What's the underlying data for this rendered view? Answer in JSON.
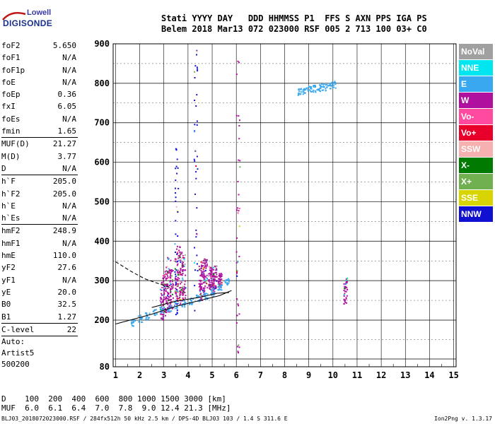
{
  "logo": {
    "line1": "Lowell",
    "line2": "DIGISONDE"
  },
  "header": {
    "line1": "Stati YYYY DAY   DDD HHMMSS P1  FFS S AXN PPS IGA PS",
    "line2": "Belem 2018 Mar13 072 023000 RSF 005 2 713 100 03+ C0"
  },
  "params": {
    "group1": [
      {
        "k": "foF2",
        "v": "5.650"
      },
      {
        "k": "foF1",
        "v": "N/A"
      },
      {
        "k": "foF1p",
        "v": "N/A"
      },
      {
        "k": "foE",
        "v": "N/A"
      },
      {
        "k": "foEp",
        "v": "0.36"
      },
      {
        "k": "fxI",
        "v": "6.05"
      },
      {
        "k": "foEs",
        "v": "N/A"
      },
      {
        "k": "fmin",
        "v": "1.65"
      }
    ],
    "group2": [
      {
        "k": "MUF(D)",
        "v": "21.27"
      },
      {
        "k": "M(D)",
        "v": "3.77"
      },
      {
        "k": "D",
        "v": "N/A"
      }
    ],
    "group3": [
      {
        "k": "h`F",
        "v": "205.0"
      },
      {
        "k": "h`F2",
        "v": "205.0"
      },
      {
        "k": "h`E",
        "v": "N/A"
      },
      {
        "k": "h`Es",
        "v": "N/A"
      }
    ],
    "group4": [
      {
        "k": "hmF2",
        "v": "248.9"
      },
      {
        "k": "hmF1",
        "v": "N/A"
      },
      {
        "k": "hmE",
        "v": "110.0"
      },
      {
        "k": "yF2",
        "v": "27.6"
      },
      {
        "k": "yF1",
        "v": "N/A"
      },
      {
        "k": "yE",
        "v": "20.0"
      },
      {
        "k": "B0",
        "v": "32.5"
      },
      {
        "k": "B1",
        "v": "1.27"
      }
    ],
    "group5": [
      {
        "k": "C-level",
        "v": "22"
      }
    ],
    "auto": [
      "Auto:",
      "Artist5",
      "500200"
    ]
  },
  "legend": [
    {
      "label": "NoVal",
      "color": "#a0a0a0"
    },
    {
      "label": "NNE",
      "color": "#00e5f0"
    },
    {
      "label": "E",
      "color": "#3aa8f0"
    },
    {
      "label": "W",
      "color": "#b0109e"
    },
    {
      "label": "Vo-",
      "color": "#ff4aa0"
    },
    {
      "label": "Vo+",
      "color": "#e8002a"
    },
    {
      "label": "SSW",
      "color": "#f6b0b0"
    },
    {
      "label": "X-",
      "color": "#007a00"
    },
    {
      "label": "X+",
      "color": "#70b050"
    },
    {
      "label": "SSE",
      "color": "#d8d400"
    },
    {
      "label": "NNW",
      "color": "#1010d0"
    }
  ],
  "chart_data": {
    "type": "scatter",
    "x_ticks": [
      1,
      2,
      3,
      4,
      5,
      6,
      7,
      8,
      9,
      10,
      11,
      12,
      13,
      14,
      15
    ],
    "y_ticks": [
      80,
      200,
      300,
      400,
      500,
      600,
      700,
      800,
      900
    ],
    "xlim": [
      0.9,
      15.1
    ],
    "ylim": [
      80,
      900
    ],
    "y_scale": "height (non-linear, expanded below 300 km)",
    "grid": true,
    "traces": [
      {
        "name": "extraordinary_w",
        "color": "#b0109e",
        "x": [
          2.9,
          3.0,
          3.1,
          3.2,
          3.3,
          3.5,
          3.6,
          3.7,
          3.8,
          4.5,
          4.6,
          4.7,
          4.9,
          5.0,
          5.1,
          5.3
        ],
        "ymin": [
          200,
          210,
          215,
          220,
          225,
          240,
          240,
          250,
          250,
          250,
          260,
          265,
          270,
          270,
          280,
          285
        ],
        "ymax": [
          300,
          320,
          340,
          360,
          330,
          360,
          380,
          390,
          370,
          350,
          360,
          360,
          340,
          330,
          340,
          320
        ]
      },
      {
        "name": "ordinary_e",
        "color": "#3aa8f0",
        "x": [
          1.7,
          2.0,
          2.3,
          2.6,
          2.9,
          3.2,
          3.5,
          3.8,
          4.1,
          4.4,
          4.7,
          5.0,
          5.3,
          5.6
        ],
        "y": [
          195,
          205,
          212,
          220,
          228,
          232,
          238,
          243,
          250,
          256,
          263,
          270,
          285,
          300
        ]
      },
      {
        "name": "vertical_lines",
        "color": "#1010d0",
        "x": [
          3.5,
          4.3
        ],
        "ymin": [
          200,
          220
        ],
        "ymax": [
          650,
          900
        ]
      },
      {
        "name": "w_vertical",
        "color": "#b0109e",
        "x": [
          6.05,
          10.5
        ],
        "ymin": [
          80,
          240
        ],
        "ymax": [
          900,
          310
        ]
      },
      {
        "name": "oblique_e",
        "color": "#3aa8f0",
        "x": [
          8.6,
          8.8,
          9.0,
          9.2,
          9.4,
          9.6,
          9.8,
          10.0
        ],
        "y": [
          780,
          782,
          785,
          788,
          790,
          792,
          795,
          798
        ]
      }
    ],
    "profile_lines": [
      {
        "name": "scaled_trace",
        "x": [
          1.0,
          1.6,
          2.5,
          3.5,
          4.5,
          5.3,
          5.8
        ],
        "y": [
          190,
          200,
          215,
          235,
          250,
          262,
          275
        ]
      },
      {
        "name": "trace2",
        "x": [
          2.5,
          3.5,
          4.5,
          5.2,
          5.7
        ],
        "y": [
          232,
          248,
          258,
          268,
          270
        ]
      },
      {
        "name": "dashed_profile",
        "x": [
          1.0,
          1.6,
          2.2,
          2.8,
          3.3
        ],
        "y": [
          348,
          325,
          305,
          292,
          282
        ]
      }
    ]
  },
  "table": {
    "line1": "D    100  200  400  600  800 1000 1500 3000 [km]",
    "line2": "MUF  6.0  6.1  6.4  7.0  7.8  9.0 12.4 21.3 [MHz]"
  },
  "footer": "BLJ03_2018072023000.RSF / 284fx512h 50 kHz 2.5 km / DPS-4D BLJ03 103 / 1.4 S 311.6 E",
  "version": "Ion2Png v. 1.3.17"
}
